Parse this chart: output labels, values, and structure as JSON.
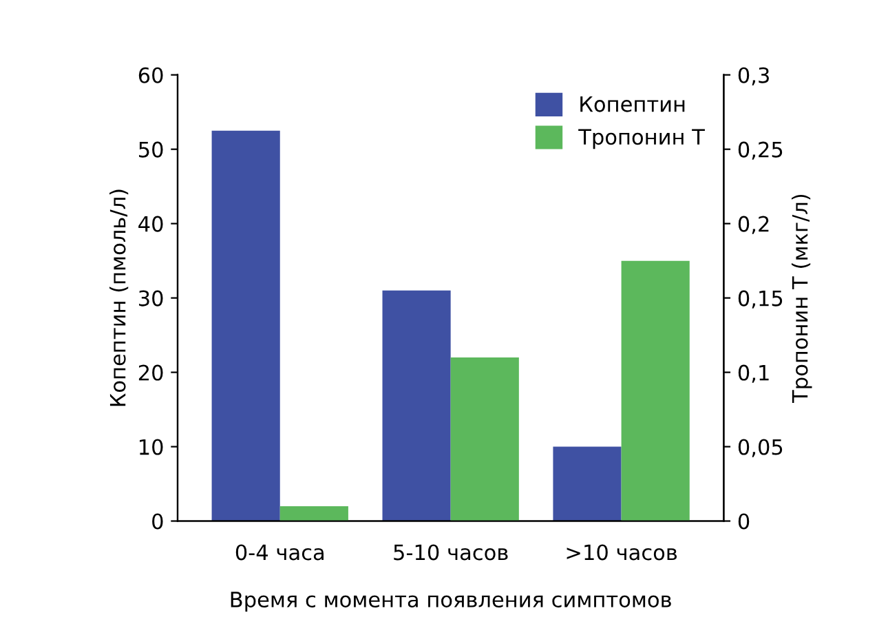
{
  "chart_data": {
    "type": "bar",
    "xlabel": "Время с момента появления симптомов",
    "ylabel": "Копептин (пмоль/л)",
    "y2label": "Тропонин T (мкг/л)",
    "categories": [
      "0-4 часа",
      "5-10 часов",
      ">10 часов"
    ],
    "series": [
      {
        "name": "Копептин",
        "color": "#3f51a3",
        "values": [
          52.5,
          31,
          10
        ]
      },
      {
        "name": "Тропонин T",
        "color": "#5cb85c",
        "values": [
          0.01,
          0.11,
          0.175
        ],
        "axis": "y2"
      }
    ],
    "ylim": [
      0,
      60
    ],
    "yticks": [
      0,
      10,
      20,
      30,
      40,
      50,
      60
    ],
    "y2lim": [
      0,
      0.3
    ],
    "y2ticks": [
      0,
      {
        "value": 0.05,
        "label": "0,05"
      },
      {
        "value": 0.1,
        "label": "0,1"
      },
      {
        "value": 0.15,
        "label": "0,15"
      },
      {
        "value": 0.2,
        "label": "0,2"
      },
      {
        "value": 0.25,
        "label": "0,25"
      },
      {
        "value": 0.3,
        "label": "0,3"
      }
    ],
    "grid": false,
    "legend": "top right"
  }
}
